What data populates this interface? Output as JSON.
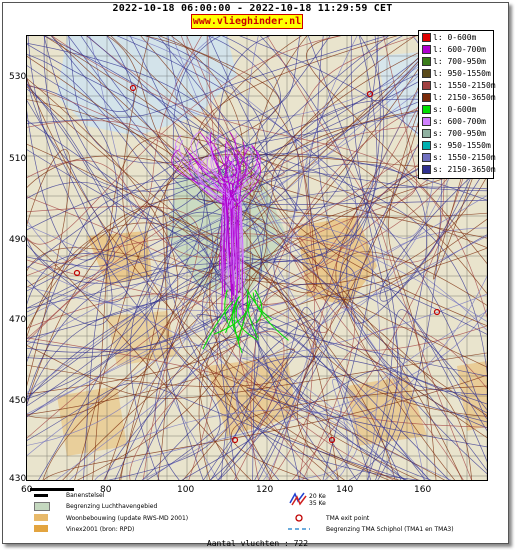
{
  "header": {
    "time_range": "2022-10-18 06:00:00 - 2022-10-18 11:29:59 CET",
    "site": "www.vlieghinder.nl"
  },
  "map": {
    "y_ticks": [
      "530",
      "510",
      "490",
      "470",
      "450",
      "430"
    ],
    "x_ticks": [
      "60",
      "80",
      "100",
      "120",
      "140",
      "160"
    ],
    "colors": {
      "background": "#dbe9f1",
      "land": "#ece6d0",
      "airport": "#c4d8bf",
      "housing": "#e8b96a",
      "grid": "#2b2b2b"
    }
  },
  "legend": [
    {
      "label": "l: 0-600m",
      "color": "#e00000"
    },
    {
      "label": "l: 600-700m",
      "color": "#b000d0"
    },
    {
      "label": "l: 700-950m",
      "color": "#3a7d1a"
    },
    {
      "label": "l: 950-1550m",
      "color": "#5a4a1a"
    },
    {
      "label": "l: 1550-2150m",
      "color": "#a04040"
    },
    {
      "label": "l: 2150-3650m",
      "color": "#7a2a0a"
    },
    {
      "label": "s: 0-600m",
      "color": "#00e000"
    },
    {
      "label": "s: 600-700m",
      "color": "#d080ff"
    },
    {
      "label": "s: 700-950m",
      "color": "#8fb0a0"
    },
    {
      "label": "s: 950-1550m",
      "color": "#00b0b0"
    },
    {
      "label": "s: 1550-2150m",
      "color": "#7070c0"
    },
    {
      "label": "s: 2150-3650m",
      "color": "#303090"
    }
  ],
  "bottom_legend": {
    "runway": "Banenstelsel",
    "airport_boundary": "Begrenzing Luchthavengebied",
    "housing": "Woonbebouwing (update RWS-MD 2001)",
    "vinex": "Vinex2001 (bron: RPD)",
    "lden_top": "20 Ke",
    "lden_bottom": "35 Ke",
    "tma_exit": "TMA exit point",
    "tma_boundary": "Begrenzing TMA Schiphol  (TMA1 en TMA3)"
  },
  "footer": {
    "count": "Aantal vluchten : 722"
  }
}
